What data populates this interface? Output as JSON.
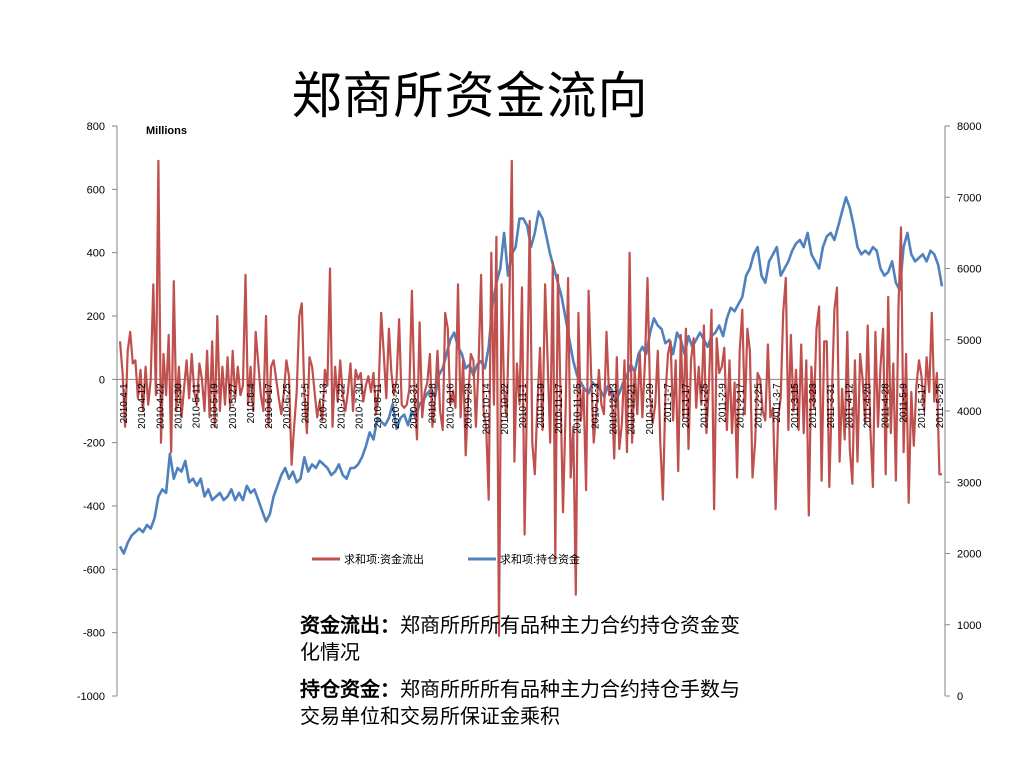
{
  "title": "郑商所资金流向",
  "chart_data": {
    "type": "line",
    "unit_label": "Millions",
    "y_left": {
      "min": -1000,
      "max": 800,
      "step": 200,
      "ticks": [
        "800",
        "600",
        "400",
        "200",
        "0",
        "-200",
        "-400",
        "-600",
        "-800",
        "-1000"
      ]
    },
    "y_right": {
      "min": 0,
      "max": 8000,
      "step": 1000,
      "ticks": [
        "8000",
        "7000",
        "6000",
        "5000",
        "4000",
        "3000",
        "2000",
        "1000",
        "0"
      ]
    },
    "x_tick_labels": [
      "2010-4-1",
      "2010-4-12",
      "2010-4-22",
      "2010-4-30",
      "2010-5-11",
      "2010-5-19",
      "2010-5-27",
      "2010-6-4",
      "2010-6-17",
      "2010-6-25",
      "2010-7-5",
      "2010-7-13",
      "2010-7-22",
      "2010-7-30",
      "2010-8-11",
      "2010-8-23",
      "2010-8-31",
      "2010-9-8",
      "2010-9-16",
      "2010-9-29",
      "2010-10-14",
      "2010-10-22",
      "2010-11-1",
      "2010-11-9",
      "2010-11-17",
      "2010-11-25",
      "2010-12-3",
      "2010-12-13",
      "2010-12-21",
      "2010-12-29",
      "2011-1-7",
      "2011-1-17",
      "2011-1-25",
      "2011-2-9",
      "2011-2-17",
      "2011-2-25",
      "2011-3-7",
      "2011-3-15",
      "2011-3-23",
      "2011-3-31",
      "2011-4-12",
      "2011-4-20",
      "2011-4-28",
      "2011-5-9",
      "2011-5-17",
      "2011-5-25"
    ],
    "series": [
      {
        "name": "求和项:资金流出",
        "axis": "left",
        "color": "#c0504d",
        "values": [
          120,
          20,
          -150,
          90,
          150,
          50,
          60,
          -60,
          30,
          -100,
          40,
          -80,
          0,
          300,
          -50,
          690,
          -200,
          80,
          -50,
          140,
          -230,
          310,
          -100,
          40,
          -120,
          -30,
          60,
          -60,
          80,
          -40,
          -80,
          50,
          0,
          -100,
          90,
          -120,
          120,
          -150,
          200,
          -100,
          40,
          -80,
          70,
          -90,
          90,
          -60,
          40,
          -50,
          -20,
          330,
          -80,
          40,
          -100,
          150,
          50,
          -50,
          -100,
          200,
          -150,
          40,
          60,
          0,
          -60,
          -110,
          -40,
          60,
          10,
          -270,
          -150,
          -40,
          200,
          240,
          -50,
          -170,
          70,
          40,
          -40,
          -120,
          -70,
          -130,
          30,
          -20,
          350,
          -150,
          40,
          -70,
          60,
          -50,
          -100,
          -40,
          50,
          -100,
          30,
          0,
          20,
          -70,
          -20,
          10,
          -40,
          20,
          -110,
          -30,
          210,
          80,
          -60,
          160,
          20,
          -50,
          0,
          190,
          -80,
          -90,
          -80,
          -30,
          280,
          -40,
          -190,
          180,
          -120,
          -40,
          -10,
          80,
          -150,
          -60,
          90,
          -100,
          -160,
          210,
          160,
          -80,
          -40,
          -90,
          300,
          -120,
          60,
          -240,
          -50,
          80,
          60,
          -150,
          40,
          330,
          -100,
          -150,
          -380,
          400,
          -80,
          450,
          -810,
          300,
          -40,
          -120,
          210,
          690,
          -260,
          50,
          -80,
          290,
          -490,
          -20,
          500,
          -200,
          -300,
          -80,
          100,
          -160,
          300,
          60,
          -200,
          370,
          -570,
          330,
          -30,
          -420,
          -100,
          320,
          -310,
          -150,
          -680,
          210,
          -130,
          -30,
          -350,
          280,
          10,
          -200,
          -100,
          30,
          -80,
          -110,
          150,
          -50,
          -40,
          -250,
          70,
          -220,
          -140,
          60,
          -230,
          400,
          -200,
          30,
          -110,
          80,
          -120,
          60,
          320,
          -50,
          -140,
          -80,
          90,
          -200,
          -380,
          -50,
          80,
          120,
          -130,
          60,
          -290,
          140,
          -120,
          160,
          -220,
          60,
          130,
          -90,
          40,
          -80,
          170,
          -170,
          -10,
          220,
          -410,
          130,
          20,
          40,
          100,
          -160,
          60,
          -170,
          -10,
          -310,
          90,
          220,
          -110,
          160,
          90,
          -310,
          -200,
          20,
          0,
          -100,
          -130,
          110,
          -120,
          -90,
          -410,
          -120,
          -60,
          210,
          320,
          -160,
          140,
          -100,
          30,
          -160,
          110,
          -170,
          60,
          -430,
          40,
          -90,
          160,
          230,
          -320,
          120,
          120,
          -340,
          -50,
          220,
          290,
          -260,
          -30,
          -190,
          150,
          -220,
          -330,
          60,
          -260,
          80,
          0,
          -140,
          170,
          -150,
          -340,
          150,
          -150,
          40,
          160,
          -300,
          260,
          -170,
          50,
          -320,
          230,
          480,
          -230,
          80,
          -390,
          -40,
          -210,
          -20,
          60,
          10,
          -100,
          70,
          -40,
          210,
          -70,
          20,
          -300,
          -300
        ]
      },
      {
        "name": "求和项:持仓资金",
        "axis": "right",
        "color": "#4f81bd",
        "values": [
          2100,
          2000,
          2150,
          2250,
          2300,
          2350,
          2300,
          2400,
          2350,
          2500,
          2800,
          2900,
          2850,
          3400,
          3050,
          3200,
          3150,
          3300,
          3000,
          3050,
          2950,
          3050,
          2800,
          2900,
          2750,
          2800,
          2850,
          2750,
          2800,
          2900,
          2750,
          2850,
          2750,
          2950,
          2850,
          2900,
          2750,
          2600,
          2450,
          2550,
          2800,
          2950,
          3100,
          3200,
          3050,
          3150,
          3000,
          3050,
          3350,
          3150,
          3250,
          3200,
          3300,
          3250,
          3200,
          3100,
          3150,
          3250,
          3100,
          3050,
          3200,
          3200,
          3250,
          3350,
          3500,
          3700,
          3600,
          3900,
          3850,
          3800,
          3900,
          4100,
          3750,
          3900,
          3950,
          3800,
          4000,
          3900,
          4100,
          4150,
          4250,
          4300,
          4200,
          4500,
          4600,
          4800,
          5000,
          5100,
          4900,
          4800,
          4600,
          4650,
          4500,
          4650,
          4700,
          4600,
          4900,
          5500,
          5800,
          6000,
          6500,
          5900,
          6200,
          6300,
          6700,
          6700,
          6600,
          6300,
          6500,
          6800,
          6700,
          6450,
          6200,
          6000,
          5800,
          5600,
          5300,
          5000,
          4700,
          4500,
          4400,
          4300,
          4250,
          4400,
          4350,
          4300,
          4200,
          4350,
          4300,
          4150,
          4250,
          4400,
          4500,
          4650,
          4550,
          4800,
          4900,
          4800,
          5100,
          5300,
          5200,
          5150,
          4950,
          5000,
          4800,
          5100,
          5000,
          4800,
          5050,
          4900,
          5000,
          5100,
          5000,
          4900,
          5050,
          5100,
          5200,
          5050,
          5300,
          5450,
          5400,
          5500,
          5600,
          5900,
          6000,
          6200,
          6300,
          5900,
          5800,
          6100,
          6200,
          6300,
          5900,
          6000,
          6100,
          6250,
          6350,
          6400,
          6300,
          6500,
          6200,
          6100,
          6000,
          6300,
          6450,
          6500,
          6400,
          6600,
          6800,
          7000,
          6850,
          6600,
          6300,
          6200,
          6250,
          6200,
          6300,
          6250,
          6000,
          5900,
          5950,
          6100,
          5800,
          5700,
          6300,
          6500,
          6200,
          6100,
          6150,
          6200,
          6100,
          6250,
          6200,
          6050,
          5750
        ]
      }
    ],
    "legend": "bottom-center"
  },
  "notes": [
    {
      "label": "资金流出：",
      "text": "郑商所所所有品种主力合约持仓资金变化情况"
    },
    {
      "label": "持仓资金：",
      "text": "郑商所所所有品种主力合约持仓手数与交易单位和交易所保证金乘积"
    }
  ],
  "colors": {
    "outflow": "#c0504d",
    "holding": "#4f81bd"
  }
}
